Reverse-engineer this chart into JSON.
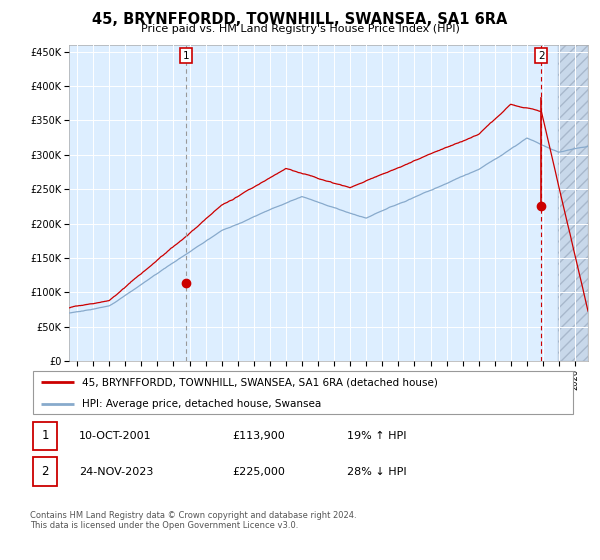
{
  "title": "45, BRYNFFORDD, TOWNHILL, SWANSEA, SA1 6RA",
  "subtitle": "Price paid vs. HM Land Registry's House Price Index (HPI)",
  "ylim": [
    0,
    460000
  ],
  "yticks": [
    0,
    50000,
    100000,
    150000,
    200000,
    250000,
    300000,
    350000,
    400000,
    450000
  ],
  "ytick_labels": [
    "£0",
    "£50K",
    "£100K",
    "£150K",
    "£200K",
    "£250K",
    "£300K",
    "£350K",
    "£400K",
    "£450K"
  ],
  "xlim_start": 1994.5,
  "xlim_end": 2026.8,
  "background_color": "#ddeeff",
  "grid_color": "#ffffff",
  "red_line_color": "#cc0000",
  "blue_line_color": "#88aacc",
  "marker_color": "#cc0000",
  "sale1_date_x": 2001.78,
  "sale1_value": 113900,
  "sale2_date_x": 2023.9,
  "sale2_value": 225000,
  "vline1_color": "#999999",
  "vline2_color": "#cc0000",
  "label1_date": "10-OCT-2001",
  "label1_price": "£113,900",
  "label1_hpi": "19% ↑ HPI",
  "label2_date": "24-NOV-2023",
  "label2_price": "£225,000",
  "label2_hpi": "28% ↓ HPI",
  "legend_label1": "45, BRYNFFORDD, TOWNHILL, SWANSEA, SA1 6RA (detached house)",
  "legend_label2": "HPI: Average price, detached house, Swansea",
  "footer": "Contains HM Land Registry data © Crown copyright and database right 2024.\nThis data is licensed under the Open Government Licence v3.0.",
  "future_shade_start": 2024.92
}
